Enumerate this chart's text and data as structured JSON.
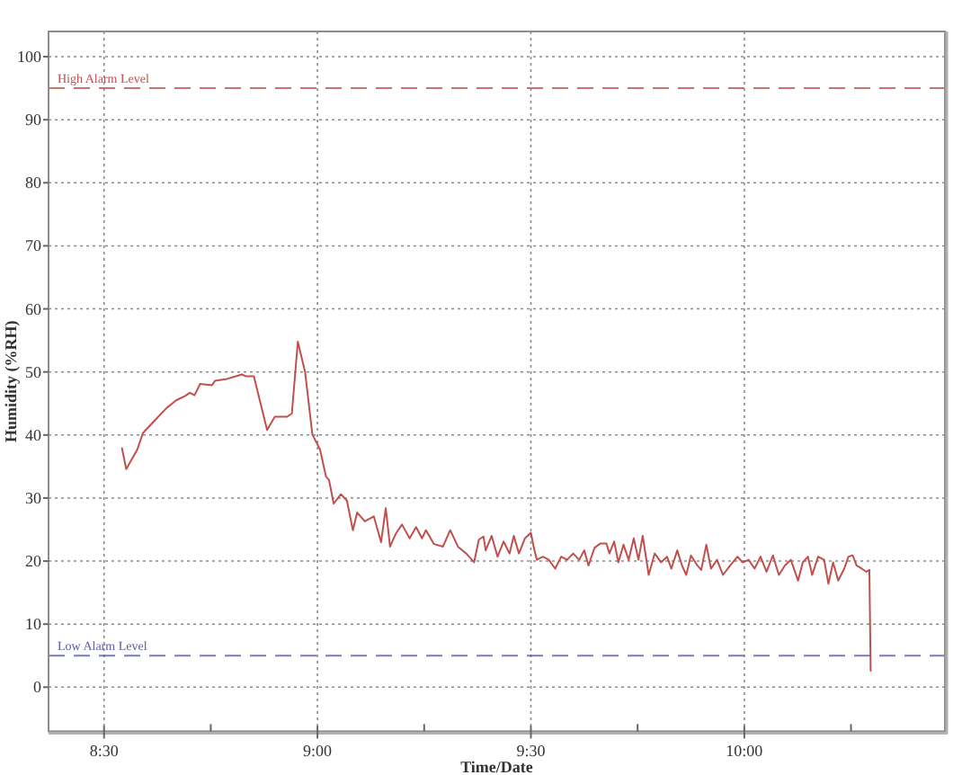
{
  "chart_data": {
    "type": "line",
    "xlabel": "Time/Date",
    "ylabel": "Humidity (%RH)",
    "x": [
      8.542,
      8.552,
      8.578,
      8.591,
      8.62,
      8.647,
      8.669,
      8.69,
      8.701,
      8.712,
      8.725,
      8.753,
      8.76,
      8.788,
      8.823,
      8.833,
      8.851,
      8.882,
      8.9,
      8.929,
      8.94,
      8.954,
      8.971,
      8.988,
      9.006,
      9.02,
      9.027,
      9.038,
      9.055,
      9.069,
      9.083,
      9.093,
      9.111,
      9.132,
      9.149,
      9.16,
      9.17,
      9.184,
      9.198,
      9.216,
      9.231,
      9.245,
      9.254,
      9.273,
      9.294,
      9.311,
      9.329,
      9.35,
      9.367,
      9.378,
      9.389,
      9.394,
      9.408,
      9.422,
      9.436,
      9.45,
      9.46,
      9.472,
      9.486,
      9.5,
      9.507,
      9.514,
      9.528,
      9.542,
      9.557,
      9.571,
      9.585,
      9.599,
      9.613,
      9.625,
      9.635,
      9.649,
      9.663,
      9.677,
      9.684,
      9.695,
      9.705,
      9.717,
      9.729,
      9.741,
      9.752,
      9.762,
      9.776,
      9.79,
      9.805,
      9.819,
      9.829,
      9.843,
      9.854,
      9.864,
      9.875,
      9.89,
      9.899,
      9.911,
      9.922,
      9.936,
      9.95,
      9.967,
      9.984,
      9.996,
      10.01,
      10.024,
      10.038,
      10.052,
      10.067,
      10.081,
      10.095,
      10.109,
      10.126,
      10.137,
      10.149,
      10.159,
      10.173,
      10.187,
      10.197,
      10.208,
      10.22,
      10.234,
      10.244,
      10.254,
      10.263,
      10.275,
      10.286,
      10.293,
      10.296
    ],
    "series": [
      {
        "color": "#c0504d",
        "values": [
          37.9,
          34.6,
          37.7,
          40.3,
          42.4,
          44.3,
          45.5,
          46.2,
          46.7,
          46.3,
          48.1,
          47.9,
          48.6,
          48.9,
          49.6,
          49.3,
          49.3,
          40.8,
          42.9,
          42.9,
          43.4,
          54.8,
          50.0,
          40.1,
          37.7,
          33.4,
          32.9,
          29.1,
          30.6,
          29.6,
          24.9,
          27.7,
          26.3,
          27.1,
          23.0,
          28.4,
          22.3,
          24.4,
          25.8,
          23.6,
          25.4,
          23.6,
          24.9,
          22.7,
          22.3,
          24.9,
          22.3,
          21.1,
          19.8,
          23.4,
          23.9,
          21.7,
          24.0,
          20.7,
          23.1,
          21.2,
          24.0,
          21.2,
          23.6,
          24.5,
          22.1,
          20.2,
          20.7,
          20.2,
          18.8,
          20.7,
          20.2,
          21.2,
          20.2,
          21.7,
          19.3,
          22.1,
          22.8,
          22.8,
          21.2,
          23.1,
          19.8,
          22.6,
          20.2,
          23.6,
          20.2,
          24.0,
          17.8,
          21.2,
          19.8,
          20.7,
          18.8,
          21.7,
          19.3,
          17.8,
          20.9,
          19.3,
          18.6,
          22.6,
          18.8,
          20.2,
          17.8,
          19.3,
          20.7,
          19.8,
          20.2,
          18.8,
          20.7,
          18.3,
          20.9,
          17.8,
          19.3,
          20.2,
          16.9,
          19.8,
          20.7,
          17.8,
          20.7,
          20.2,
          16.4,
          19.8,
          16.9,
          18.8,
          20.7,
          20.9,
          19.3,
          18.8,
          18.3,
          18.6,
          2.6
        ]
      }
    ],
    "xlim": [
      8.37,
      10.47
    ],
    "xticks": [
      {
        "value": 8.5,
        "label": "8:30"
      },
      {
        "value": 8.75,
        "label": null
      },
      {
        "value": 9,
        "label": "9:00"
      },
      {
        "value": 9.25,
        "label": null
      },
      {
        "value": 9.5,
        "label": "9:30"
      },
      {
        "value": 9.75,
        "label": null
      },
      {
        "value": 10,
        "label": "10:00"
      },
      {
        "value": 10.25,
        "label": null
      }
    ],
    "ylim": [
      -7,
      104
    ],
    "yticks": [
      0,
      10,
      20,
      30,
      40,
      50,
      60,
      70,
      80,
      90,
      100
    ],
    "grid": true,
    "ref_lines": [
      {
        "axis": "y",
        "value": 95,
        "label": "High Alarm Level",
        "color": "#c0504d",
        "line_style": "dashed"
      },
      {
        "axis": "y",
        "value": 5,
        "label": "Low Alarm Level",
        "color": "#5a5aa8",
        "line_style": "dashed"
      }
    ]
  }
}
